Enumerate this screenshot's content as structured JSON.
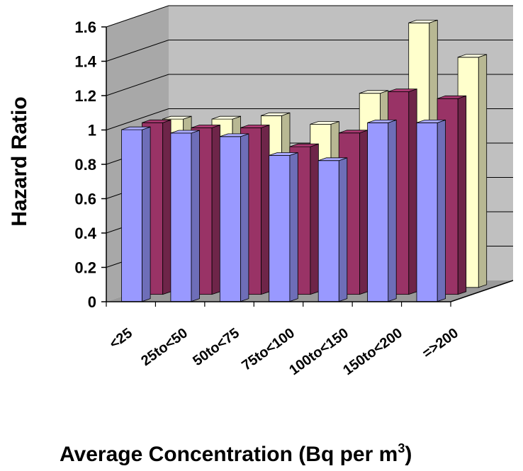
{
  "chart_data": {
    "type": "bar",
    "style": "3d-clustered-column",
    "categories": [
      "<25",
      "25to<50",
      "50to<75",
      "75to<100",
      "100to<150",
      "150to<200",
      "=>200"
    ],
    "series": [
      {
        "values": [
          1.0,
          0.98,
          0.96,
          0.85,
          0.82,
          1.04,
          1.04
        ],
        "color": "#9999FF"
      },
      {
        "values": [
          1.0,
          0.97,
          0.97,
          0.86,
          0.94,
          1.18,
          1.14
        ],
        "color": "#993366"
      },
      {
        "values": [
          0.98,
          0.98,
          1.0,
          0.95,
          1.13,
          1.54,
          1.34
        ],
        "color": "#FFFFCC"
      }
    ],
    "ylabel": "Hazard Ratio",
    "xlabel_main": "Average Concentration (Bq per m",
    "xlabel_sup": "3",
    "xlabel_tail": ")",
    "ylim": [
      0,
      1.6
    ],
    "yticks": [
      "0",
      "0.2",
      "0.4",
      "0.6",
      "0.8",
      "1",
      "1.2",
      "1.4",
      "1.6"
    ],
    "grid": true
  }
}
